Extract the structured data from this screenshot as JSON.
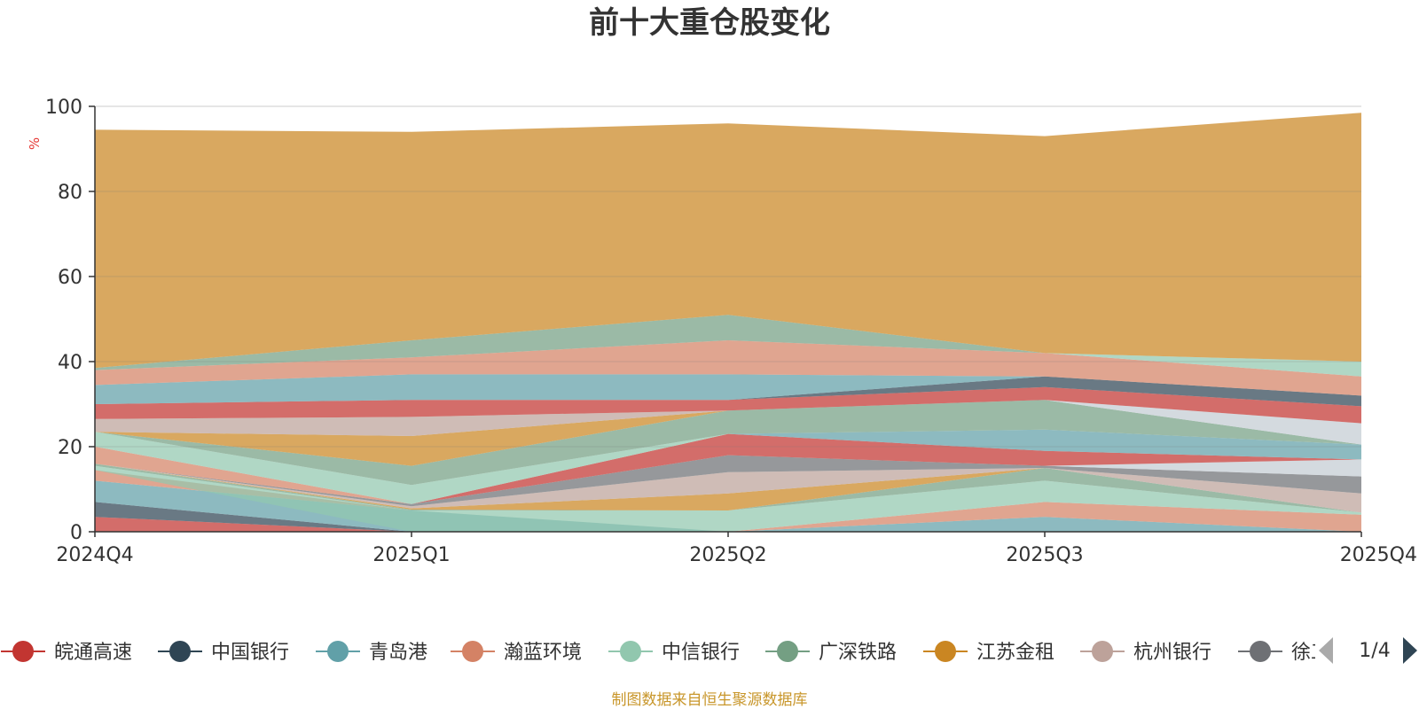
{
  "chart_data": {
    "type": "area",
    "title": "前十大重仓股变化",
    "ylabel": "%",
    "ylim": [
      0,
      100
    ],
    "yticks": [
      0,
      20,
      40,
      60,
      80,
      100
    ],
    "categories": [
      "2024Q4",
      "2025Q1",
      "2025Q2",
      "2025Q3",
      "2025Q4"
    ],
    "series": [
      {
        "name": "皖通高速",
        "color": "#c23531"
      },
      {
        "name": "中国银行",
        "color": "#2f4554"
      },
      {
        "name": "青岛港",
        "color": "#61a0a8"
      },
      {
        "name": "瀚蓝环境",
        "color": "#d48265"
      },
      {
        "name": "中信银行",
        "color": "#91c7ae"
      },
      {
        "name": "广深铁路",
        "color": "#749f83"
      },
      {
        "name": "江苏金租",
        "color": "#ca8622"
      },
      {
        "name": "杭州银行",
        "color": "#bda29a"
      },
      {
        "name": "徐工机械",
        "color": "#6e7074"
      }
    ],
    "bands": [
      {
        "color": "#c23531",
        "upper": [
          3.5,
          0,
          0,
          0,
          0
        ],
        "lower": [
          0,
          0,
          0,
          0,
          0
        ]
      },
      {
        "color": "#2f4554",
        "upper": [
          7,
          0,
          0,
          0,
          0
        ],
        "lower": [
          3.5,
          0,
          0,
          0,
          0
        ]
      },
      {
        "color": "#61a0a8",
        "upper": [
          12,
          5,
          0,
          3.5,
          0
        ],
        "lower": [
          7,
          0,
          0,
          0,
          0
        ]
      },
      {
        "color": "#d48265",
        "upper": [
          14.5,
          5,
          0,
          7,
          4
        ],
        "lower": [
          12,
          5,
          0,
          3.5,
          0
        ]
      },
      {
        "color": "#91c7ae",
        "upper": [
          15.5,
          5,
          5,
          12,
          4.5
        ],
        "lower": [
          14.5,
          0,
          0,
          7,
          4
        ]
      },
      {
        "color": "#749f83",
        "upper": [
          16,
          5.2,
          5,
          15,
          4.5
        ],
        "lower": [
          15.5,
          5,
          5,
          12,
          4.5
        ]
      },
      {
        "color": "#ca8622",
        "upper": [
          16,
          5.5,
          9,
          15,
          4.5
        ],
        "lower": [
          16,
          5.2,
          5,
          15,
          4.5
        ]
      },
      {
        "color": "#bda29a",
        "upper": [
          16,
          6,
          14,
          15,
          9
        ],
        "lower": [
          16,
          5.5,
          9,
          15,
          4.5
        ]
      },
      {
        "color": "#6e7074",
        "upper": [
          16,
          6.5,
          18,
          15.5,
          13
        ],
        "lower": [
          16,
          6,
          14,
          15,
          9
        ]
      },
      {
        "color": "#c4ccd3",
        "upper": [
          16,
          6.5,
          18,
          15.5,
          17
        ],
        "lower": [
          16,
          6.5,
          18,
          15.5,
          13
        ]
      },
      {
        "color": "#c23531",
        "upper": [
          16,
          6.5,
          23,
          19,
          17
        ],
        "lower": [
          16,
          6.5,
          18,
          15.5,
          17
        ]
      },
      {
        "color": "#d48265",
        "upper": [
          20,
          6.5,
          23,
          19,
          17
        ],
        "lower": [
          16,
          6.5,
          23,
          19,
          17
        ]
      },
      {
        "color": "#91c7ae",
        "upper": [
          23.5,
          11,
          23,
          19,
          17
        ],
        "lower": [
          20,
          6.5,
          23,
          19,
          17
        ]
      },
      {
        "color": "#61a0a8",
        "upper": [
          23.5,
          11,
          23,
          24,
          20.5
        ],
        "lower": [
          23.5,
          11,
          23,
          19,
          17
        ]
      },
      {
        "color": "#749f83",
        "upper": [
          23.5,
          15.5,
          28.5,
          31,
          20.5
        ],
        "lower": [
          23.5,
          11,
          23,
          24,
          20.5
        ]
      },
      {
        "color": "#ca8622",
        "upper": [
          23.5,
          22.5,
          28.5,
          31,
          20.5
        ],
        "lower": [
          23.5,
          15.5,
          28.5,
          31,
          20.5
        ]
      },
      {
        "color": "#c4ccd3",
        "upper": [
          23.5,
          22.5,
          28.5,
          31,
          25.5
        ],
        "lower": [
          23.5,
          22.5,
          28.5,
          31,
          20.5
        ]
      },
      {
        "color": "#bda29a",
        "upper": [
          26.5,
          27,
          28.5,
          31,
          25.5
        ],
        "lower": [
          23.5,
          22.5,
          28.5,
          31,
          25.5
        ]
      },
      {
        "color": "#c23531",
        "upper": [
          30,
          31,
          31,
          34,
          29.5
        ],
        "lower": [
          26.5,
          27,
          28.5,
          31,
          25.5
        ]
      },
      {
        "color": "#2f4554",
        "upper": [
          30,
          31,
          31,
          36.5,
          32
        ],
        "lower": [
          30,
          31,
          31,
          34,
          29.5
        ]
      },
      {
        "color": "#61a0a8",
        "upper": [
          34.5,
          37,
          37,
          36.5,
          32
        ],
        "lower": [
          30,
          31,
          31,
          36.5,
          32
        ]
      },
      {
        "color": "#d48265",
        "upper": [
          38,
          41,
          45,
          42,
          36.5
        ],
        "lower": [
          34.5,
          37,
          37,
          36.5,
          32
        ]
      },
      {
        "color": "#91c7ae",
        "upper": [
          38,
          41,
          45,
          42,
          40
        ],
        "lower": [
          38,
          41,
          45,
          42,
          36.5
        ]
      },
      {
        "color": "#749f83",
        "upper": [
          38.5,
          45,
          51,
          42,
          40
        ],
        "lower": [
          38,
          41,
          45,
          42,
          40
        ]
      },
      {
        "color": "#ca8622",
        "upper": [
          94.5,
          94,
          96,
          93,
          98.5
        ],
        "lower": [
          38.5,
          45,
          51,
          42,
          40
        ]
      }
    ]
  },
  "legend": {
    "items": [
      {
        "label": "皖通高速",
        "color": "#c23531"
      },
      {
        "label": "中国银行",
        "color": "#2f4554"
      },
      {
        "label": "青岛港",
        "color": "#61a0a8"
      },
      {
        "label": "瀚蓝环境",
        "color": "#d48265"
      },
      {
        "label": "中信银行",
        "color": "#91c7ae"
      },
      {
        "label": "广深铁路",
        "color": "#749f83"
      },
      {
        "label": "江苏金租",
        "color": "#ca8622"
      },
      {
        "label": "杭州银行",
        "color": "#bda29a"
      },
      {
        "label": "徐工机械",
        "color": "#6e7074"
      }
    ],
    "page_indicator": "1/4",
    "prev_icon": "triangle-left-icon",
    "next_icon": "triangle-right-icon"
  },
  "source_note": "制图数据来自恒生聚源数据库"
}
